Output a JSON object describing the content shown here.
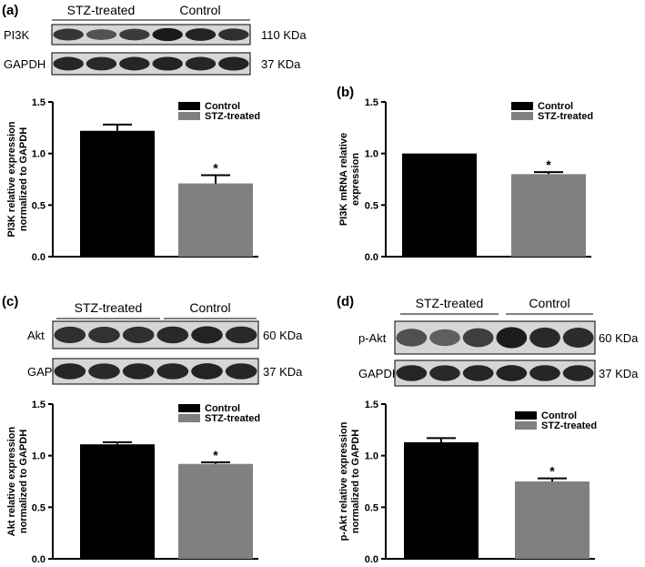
{
  "panels": [
    {
      "id": "a",
      "label": "(a)",
      "blot": {
        "group_labels": [
          "STZ-treated",
          "Control"
        ],
        "rows": [
          {
            "name": "PI3K",
            "size": "110 KDa",
            "intensities": [
              0.78,
              0.58,
              0.74,
              0.96,
              0.9,
              0.82
            ]
          },
          {
            "name": "GAPDH",
            "size": "37 KDa",
            "intensities": [
              0.88,
              0.86,
              0.88,
              0.9,
              0.88,
              0.9
            ]
          }
        ]
      }
    },
    {
      "id": "b",
      "label": "(b)",
      "blot": null
    },
    {
      "id": "c",
      "label": "(c)",
      "blot": {
        "group_labels": [
          "STZ-treated",
          "Control"
        ],
        "rows": [
          {
            "name": "Akt",
            "size": "60 KDa",
            "intensities": [
              0.82,
              0.8,
              0.82,
              0.86,
              0.9,
              0.86
            ]
          },
          {
            "name": "GAPDH",
            "size": "37 KDa",
            "intensities": [
              0.88,
              0.86,
              0.88,
              0.88,
              0.9,
              0.88
            ]
          }
        ]
      }
    },
    {
      "id": "d",
      "label": "(d)",
      "blot": {
        "group_labels": [
          "STZ-treated",
          "Control"
        ],
        "rows": [
          {
            "name": "p-Akt",
            "size": "60 KDa",
            "intensities": [
              0.6,
              0.5,
              0.72,
              0.95,
              0.86,
              0.84
            ]
          },
          {
            "name": "GAPDH",
            "size": "37 KDa",
            "intensities": [
              0.88,
              0.86,
              0.88,
              0.9,
              0.88,
              0.88
            ]
          }
        ]
      }
    }
  ],
  "chart_data": [
    {
      "panel": "a",
      "type": "bar",
      "categories": [
        "Control",
        "STZ-treated"
      ],
      "values": [
        1.22,
        0.71
      ],
      "errors": [
        0.06,
        0.08
      ],
      "significance": [
        "",
        "*"
      ],
      "colors": [
        "#000000",
        "#808080"
      ],
      "ylabel": "PI3K relative expression normalized to GAPDH",
      "ylabel_lines": [
        "PI3K relative expression",
        "normalized to GAPDH"
      ],
      "ylim": [
        0,
        1.5
      ],
      "yticks": [
        "0.0",
        "0.5",
        "1.0",
        "1.5"
      ],
      "legend": [
        "Control",
        "STZ-treated"
      ]
    },
    {
      "panel": "b",
      "type": "bar",
      "categories": [
        "Control",
        "STZ-treated"
      ],
      "values": [
        1.0,
        0.8
      ],
      "errors": [
        0.0,
        0.02
      ],
      "significance": [
        "",
        "*"
      ],
      "colors": [
        "#000000",
        "#808080"
      ],
      "ylabel": "PI3K mRNA relative expression",
      "ylabel_lines": [
        "PI3K mRNA relative",
        "expression"
      ],
      "ylim": [
        0,
        1.5
      ],
      "yticks": [
        "0.0",
        "0.5",
        "1.0",
        "1.5"
      ],
      "legend": [
        "Control",
        "STZ-treated"
      ]
    },
    {
      "panel": "c",
      "type": "bar",
      "categories": [
        "Control",
        "STZ-treated"
      ],
      "values": [
        1.11,
        0.92
      ],
      "errors": [
        0.02,
        0.015
      ],
      "significance": [
        "",
        "*"
      ],
      "colors": [
        "#000000",
        "#808080"
      ],
      "ylabel": "Akt relative expression normalized to GAPDH",
      "ylabel_lines": [
        "Akt relative expression",
        "normalized to GAPDH"
      ],
      "ylim": [
        0,
        1.5
      ],
      "yticks": [
        "0.0",
        "0.5",
        "1.0",
        "1.5"
      ],
      "legend": [
        "Control",
        "STZ-treated"
      ]
    },
    {
      "panel": "d",
      "type": "bar",
      "categories": [
        "Control",
        "STZ-treated"
      ],
      "values": [
        1.13,
        0.75
      ],
      "errors": [
        0.04,
        0.03
      ],
      "significance": [
        "",
        "*"
      ],
      "colors": [
        "#000000",
        "#808080"
      ],
      "ylabel": "p-Akt relative expression normalized to GAPDH",
      "ylabel_lines": [
        "p-Akt relative expression",
        "normalized to GAPDH"
      ],
      "ylim": [
        0,
        1.5
      ],
      "yticks": [
        "0.0",
        "0.5",
        "1.0",
        "1.5"
      ],
      "legend": [
        "Control",
        "STZ-treated"
      ]
    }
  ]
}
